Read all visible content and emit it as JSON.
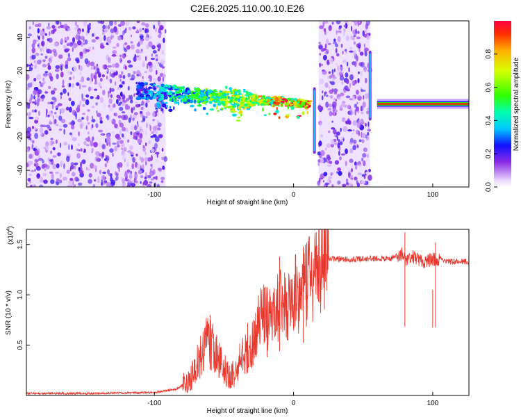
{
  "figure_title": "C2E6.2025.110.00.10.E26",
  "chart_data": [
    {
      "type": "heatmap",
      "xlabel": "Height of straight line (km)",
      "ylabel": "Frequency (Hz)",
      "xlim": [
        -192,
        126
      ],
      "ylim": [
        -50,
        50
      ],
      "x_ticks": [
        -100,
        0,
        100
      ],
      "y_ticks": [
        -40,
        -20,
        0,
        20,
        40
      ],
      "colorbar": {
        "label": "Normalized spectral amplitude",
        "range": [
          0.0,
          1.0
        ],
        "ticks": [
          0.0,
          0.2,
          0.4,
          0.6,
          0.8
        ]
      },
      "regions": [
        {
          "x": [
            -192,
            -92
          ],
          "freq": [
            -50,
            50
          ],
          "kind": "noise",
          "amplitude": 0.15
        },
        {
          "x": [
            -112,
            12
          ],
          "freq_center_start": 8,
          "freq_center_end": 0,
          "kind": "signal",
          "amplitude_start": 0.3,
          "amplitude_end": 0.95
        },
        {
          "x": [
            18,
            55
          ],
          "freq": [
            -50,
            50
          ],
          "kind": "noise",
          "amplitude": 0.15
        },
        {
          "x": [
            60,
            126
          ],
          "freq_center": 0,
          "kind": "tone",
          "amplitude": 0.95
        }
      ],
      "vertical_artifacts": [
        {
          "x": 15,
          "freq": [
            -30,
            10
          ]
        },
        {
          "x": 55,
          "freq": [
            -10,
            32
          ]
        }
      ]
    },
    {
      "type": "line",
      "xlabel": "Height of straight line (km)",
      "ylabel": "SNR (10 * v/v)",
      "y_multiplier": "(x10",
      "y_multiplier_exp": "4",
      "y_multiplier_close": ")",
      "xlim": [
        -192,
        126
      ],
      "ylim": [
        0,
        1.65
      ],
      "x_ticks": [
        -100,
        0,
        100
      ],
      "y_ticks": [
        0.5,
        1.0,
        1.5
      ],
      "y_tick_labels": [
        "0.5",
        "1.0",
        "1.5"
      ],
      "color": "#e8392e",
      "series": [
        {
          "x": [
            -192,
            -150,
            -100,
            -85,
            -75,
            -68,
            -62,
            -57,
            -52,
            -47,
            -43,
            -38,
            -33,
            -28,
            -23,
            -18,
            -13,
            -8,
            -3,
            2,
            7,
            12,
            18,
            25,
            32,
            40,
            50,
            60,
            70,
            78,
            82,
            86,
            92,
            100,
            105,
            110,
            126
          ],
          "y": [
            0.02,
            0.02,
            0.03,
            0.06,
            0.14,
            0.35,
            0.55,
            0.45,
            0.3,
            0.22,
            0.2,
            0.35,
            0.45,
            0.55,
            0.8,
            0.75,
            0.85,
            0.9,
            0.88,
            1.0,
            1.05,
            1.15,
            1.28,
            1.35,
            1.36,
            1.35,
            1.36,
            1.36,
            1.36,
            1.4,
            1.34,
            1.38,
            1.33,
            1.35,
            1.36,
            1.33,
            1.33
          ]
        }
      ],
      "spikes": [
        {
          "x": -60,
          "y": 0.8
        },
        {
          "x": -44,
          "y": 0.3
        },
        {
          "x": -33,
          "y": 0.72
        },
        {
          "x": -19,
          "y": 1.02
        },
        {
          "x": -10,
          "y": 1.38
        },
        {
          "x": 7,
          "y": 1.48
        },
        {
          "x": 80,
          "y": 1.62
        },
        {
          "x": 100,
          "y": 1.05
        },
        {
          "x": 102,
          "y": 1.52
        }
      ]
    }
  ]
}
